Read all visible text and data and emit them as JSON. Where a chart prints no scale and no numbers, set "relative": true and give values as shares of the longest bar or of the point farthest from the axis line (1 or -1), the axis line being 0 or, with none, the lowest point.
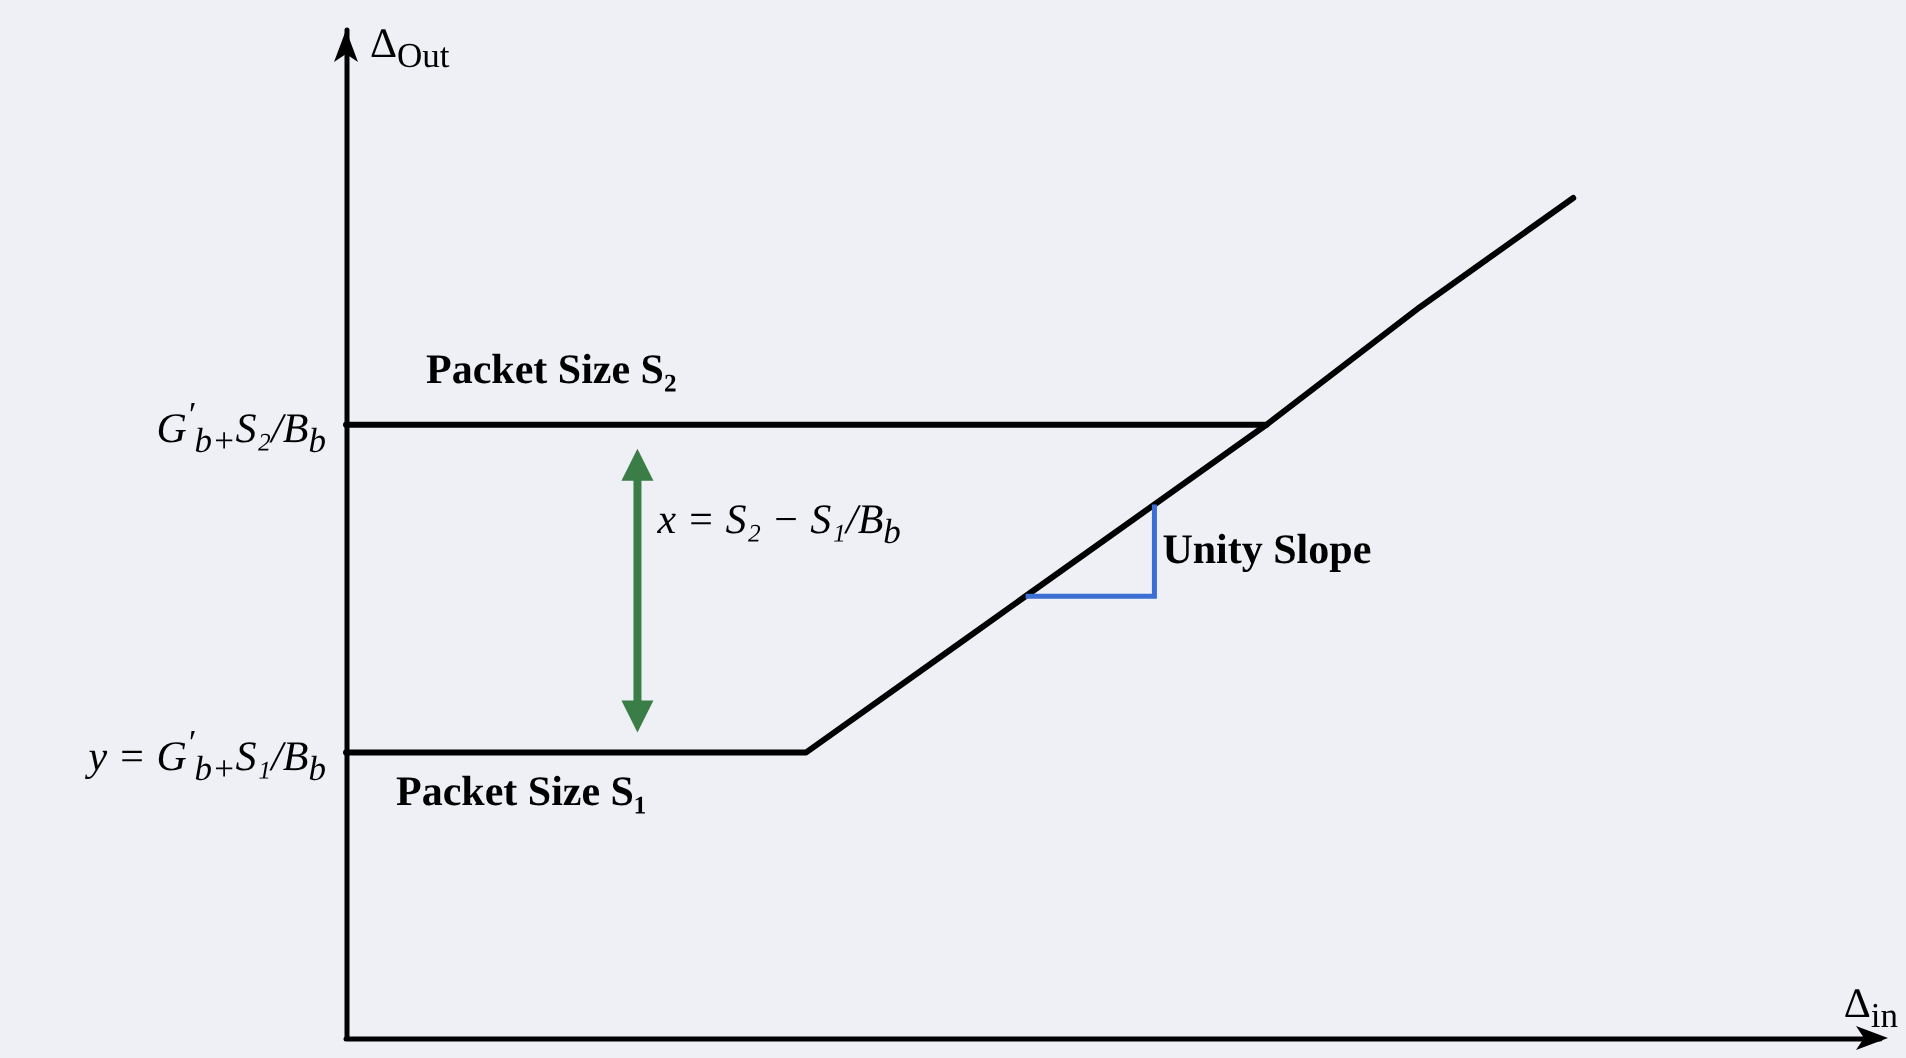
{
  "chart_data": {
    "type": "line",
    "xlabel": "Δ$_{in}$",
    "ylabel": "Δ$_{Out}$",
    "categories": [
      null,
      null,
      null,
      null,
      null,
      null,
      null,
      null,
      null,
      null,
      null
    ],
    "relative": true,
    "series": [
      {
        "name": "Packet Size S₂",
        "color": "#000000",
        "values": [
          0.73,
          0.73,
          0.73,
          0.73,
          0.73,
          0.73,
          0.73,
          null,
          null,
          null,
          null
        ]
      },
      {
        "name": "Packet Size S₁",
        "color": "#000000",
        "values": [
          0.34,
          0.34,
          0.34,
          0.34,
          0.47,
          0.6,
          0.73,
          0.87,
          1,
          null,
          null
        ]
      }
    ],
    "annotations": [
      "G$^{′}$$_{b+}$S₂/B$_{b}$",
      "y = G$^{′}$$_{b+}$S₁/B$_{b}$",
      "x = S₂ − S₁/B$_{b}$",
      "Unity Slope"
    ],
    "marker": "none",
    "line_style": "solid",
    "grid": false,
    "legend": false
  }
}
